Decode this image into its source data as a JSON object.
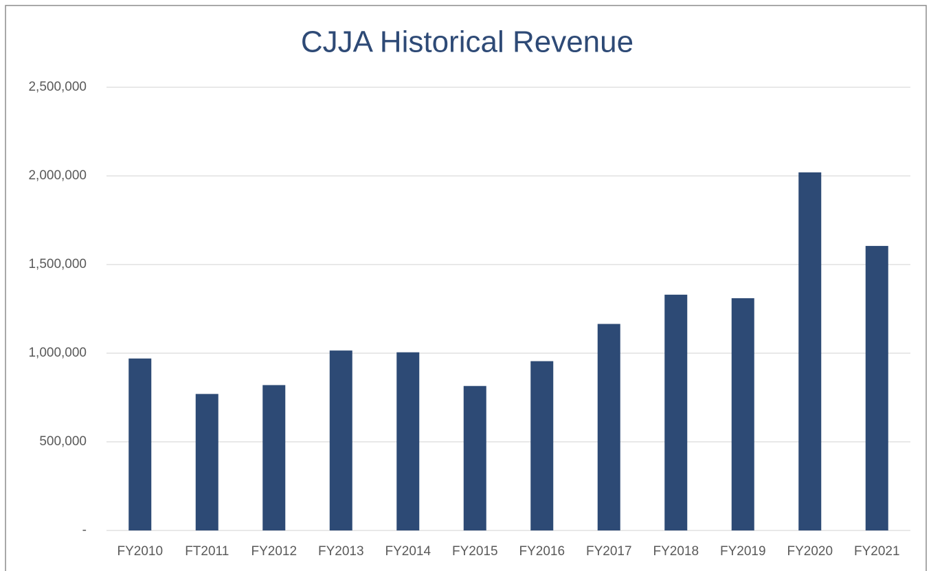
{
  "chart_data": {
    "type": "bar",
    "title": "CJJA Historical Revenue",
    "categories": [
      "FY2010",
      "FT2011",
      "FY2012",
      "FY2013",
      "FY2014",
      "FY2015",
      "FY2016",
      "FY2017",
      "FY2018",
      "FY2019",
      "FY2020",
      "FY2021"
    ],
    "values": [
      970000,
      770000,
      820000,
      1015000,
      1005000,
      815000,
      955000,
      1165000,
      1330000,
      1310000,
      2020000,
      1605000
    ],
    "color": "#2d4a75",
    "ylim": [
      0,
      2500000
    ],
    "yticks": [
      {
        "value": 0,
        "label": "-"
      },
      {
        "value": 500000,
        "label": "500,000"
      },
      {
        "value": 1000000,
        "label": "1,000,000"
      },
      {
        "value": 1500000,
        "label": "1,500,000"
      },
      {
        "value": 2000000,
        "label": "2,000,000"
      },
      {
        "value": 2500000,
        "label": "2,500,000"
      }
    ],
    "grid": true
  }
}
